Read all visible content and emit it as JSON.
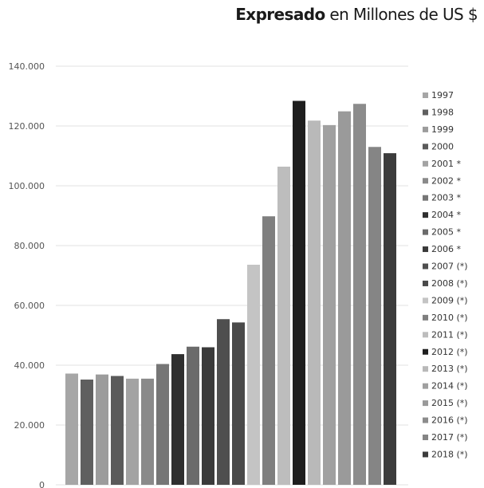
{
  "header": {
    "title_bold": "Expresado",
    "title_rest": "en Millones de US $"
  },
  "chart_data": {
    "type": "bar",
    "ylim": [
      0,
      140000
    ],
    "yticks": [
      {
        "value": 0,
        "label": "0"
      },
      {
        "value": 20000,
        "label": "20.000"
      },
      {
        "value": 40000,
        "label": "40.000"
      },
      {
        "value": 60000,
        "label": "60.000"
      },
      {
        "value": 80000,
        "label": "80.000"
      },
      {
        "value": 100000,
        "label": "100.000"
      },
      {
        "value": 120000,
        "label": "120.000"
      },
      {
        "value": 140000,
        "label": "140.000"
      }
    ],
    "grid": true,
    "legend_position": "right",
    "series": [
      {
        "name": "1997",
        "value": 37200,
        "color": "#a6a6a6"
      },
      {
        "name": "1998",
        "value": 35200,
        "color": "#5f5f5f"
      },
      {
        "name": "1999",
        "value": 36900,
        "color": "#9c9c9c"
      },
      {
        "name": "2000",
        "value": 36400,
        "color": "#5a5a5a"
      },
      {
        "name": "2001 *",
        "value": 35500,
        "color": "#a3a3a3"
      },
      {
        "name": "2002 *",
        "value": 35500,
        "color": "#8a8a8a"
      },
      {
        "name": "2003 *",
        "value": 40400,
        "color": "#767676"
      },
      {
        "name": "2004 *",
        "value": 43700,
        "color": "#2f2f2f"
      },
      {
        "name": "2005 *",
        "value": 46200,
        "color": "#6b6b6b"
      },
      {
        "name": "2006 *",
        "value": 46000,
        "color": "#3a3a3a"
      },
      {
        "name": "2007 (*)",
        "value": 55400,
        "color": "#4f4f4f"
      },
      {
        "name": "2008 (*)",
        "value": 54300,
        "color": "#4a4a4a"
      },
      {
        "name": "2009 (*)",
        "value": 73600,
        "color": "#c4c4c4"
      },
      {
        "name": "2010 (*)",
        "value": 89800,
        "color": "#7f7f7f"
      },
      {
        "name": "2011 (*)",
        "value": 106400,
        "color": "#bdbdbd"
      },
      {
        "name": "2012 (*)",
        "value": 128400,
        "color": "#1e1e1e"
      },
      {
        "name": "2013 (*)",
        "value": 121800,
        "color": "#b9b9b9"
      },
      {
        "name": "2014 (*)",
        "value": 120300,
        "color": "#a0a0a0"
      },
      {
        "name": "2015 (*)",
        "value": 124900,
        "color": "#9a9a9a"
      },
      {
        "name": "2016 (*)",
        "value": 127400,
        "color": "#8c8c8c"
      },
      {
        "name": "2017 (*)",
        "value": 113000,
        "color": "#858585"
      },
      {
        "name": "2018 (*)",
        "value": 110900,
        "color": "#3c3c3c"
      }
    ]
  }
}
